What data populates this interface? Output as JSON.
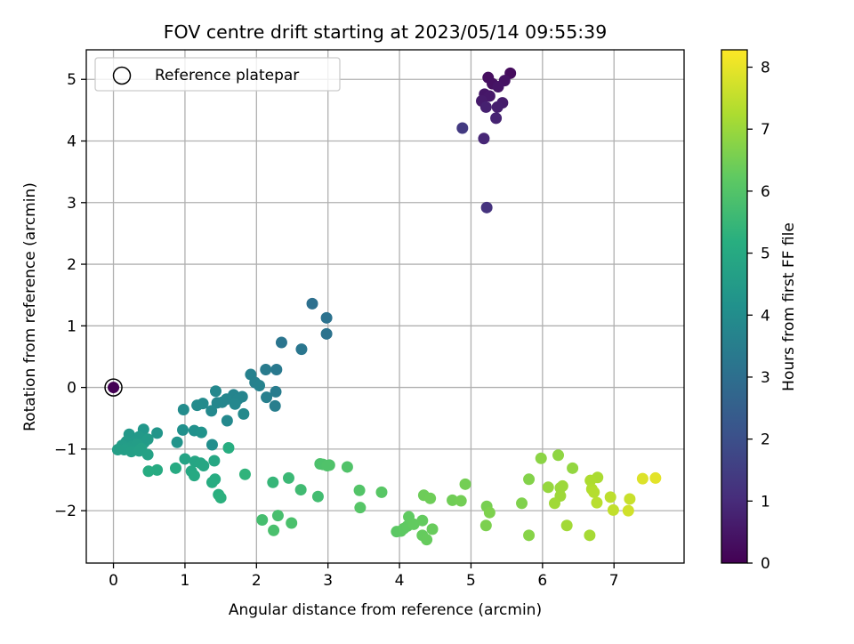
{
  "chart_data": {
    "type": "scatter",
    "title": "FOV centre drift starting at 2023/05/14 09:55:39",
    "xlabel": "Angular distance from reference (arcmin)",
    "ylabel": "Rotation from reference (arcmin)",
    "xlim": [
      -0.38,
      7.98
    ],
    "ylim": [
      -2.85,
      5.48
    ],
    "xticks": [
      0,
      1,
      2,
      3,
      4,
      5,
      6,
      7
    ],
    "yticks": [
      -2,
      -1,
      0,
      1,
      2,
      3,
      4,
      5
    ],
    "grid": true,
    "legend": {
      "placement": "upper-left",
      "entries": [
        "Reference platepar"
      ]
    },
    "reference_point": {
      "x": 0,
      "y": 0,
      "label": "Reference platepar"
    },
    "colorbar": {
      "label": "Hours from first FF file",
      "colormap": "viridis",
      "range": [
        0,
        8.28
      ],
      "ticks": [
        0,
        1,
        2,
        3,
        4,
        5,
        6,
        7,
        8
      ]
    },
    "points": [
      [
        0.0,
        0.0,
        0.0
      ],
      [
        5.55,
        5.1,
        0.25
      ],
      [
        5.24,
        5.03,
        0.3
      ],
      [
        5.3,
        4.93,
        0.35
      ],
      [
        5.47,
        4.98,
        0.4
      ],
      [
        5.38,
        4.88,
        0.45
      ],
      [
        5.19,
        4.76,
        0.5
      ],
      [
        5.26,
        4.73,
        0.55
      ],
      [
        5.15,
        4.65,
        0.6
      ],
      [
        5.44,
        4.62,
        0.65
      ],
      [
        5.37,
        4.55,
        0.7
      ],
      [
        5.21,
        4.55,
        0.75
      ],
      [
        5.35,
        4.37,
        0.8
      ],
      [
        5.18,
        4.04,
        0.9
      ],
      [
        5.22,
        2.92,
        1.2
      ],
      [
        4.88,
        4.21,
        1.4
      ],
      [
        2.78,
        1.36,
        3.05
      ],
      [
        2.98,
        1.13,
        3.1
      ],
      [
        2.98,
        0.87,
        3.15
      ],
      [
        2.35,
        0.73,
        3.2
      ],
      [
        2.63,
        0.62,
        3.25
      ],
      [
        2.28,
        0.29,
        3.35
      ],
      [
        2.13,
        0.29,
        3.4
      ],
      [
        2.27,
        -0.07,
        3.45
      ],
      [
        2.26,
        -0.3,
        3.5
      ],
      [
        2.14,
        -0.16,
        3.55
      ],
      [
        1.92,
        0.21,
        3.6
      ],
      [
        1.98,
        0.08,
        3.62
      ],
      [
        2.04,
        0.03,
        3.64
      ],
      [
        1.8,
        -0.15,
        3.7
      ],
      [
        1.68,
        -0.12,
        3.72
      ],
      [
        1.74,
        -0.19,
        3.74
      ],
      [
        1.58,
        -0.19,
        3.76
      ],
      [
        1.52,
        -0.24,
        3.78
      ],
      [
        1.7,
        -0.27,
        3.8
      ],
      [
        1.45,
        -0.25,
        3.82
      ],
      [
        1.43,
        -0.06,
        3.84
      ],
      [
        1.37,
        -0.38,
        3.86
      ],
      [
        1.59,
        -0.54,
        3.88
      ],
      [
        1.82,
        -0.43,
        3.9
      ],
      [
        1.25,
        -0.26,
        3.92
      ],
      [
        1.17,
        -0.29,
        3.94
      ],
      [
        0.98,
        -0.36,
        3.96
      ],
      [
        1.38,
        -0.93,
        4.05
      ],
      [
        0.97,
        -0.69,
        4.1
      ],
      [
        1.13,
        -0.7,
        4.15
      ],
      [
        1.23,
        -0.73,
        4.2
      ],
      [
        0.89,
        -0.89,
        4.25
      ],
      [
        0.61,
        -0.74,
        4.3
      ],
      [
        0.42,
        -0.68,
        4.35
      ],
      [
        0.22,
        -0.76,
        4.4
      ],
      [
        0.36,
        -0.8,
        4.42
      ],
      [
        0.3,
        -0.87,
        4.44
      ],
      [
        0.18,
        -0.88,
        4.46
      ],
      [
        0.43,
        -0.89,
        4.48
      ],
      [
        0.48,
        -0.84,
        4.5
      ],
      [
        0.12,
        -0.94,
        4.52
      ],
      [
        0.26,
        -0.95,
        4.54
      ],
      [
        0.33,
        -0.92,
        4.56
      ],
      [
        0.2,
        -0.99,
        4.58
      ],
      [
        0.15,
        -1.01,
        4.6
      ],
      [
        0.06,
        -1.01,
        4.62
      ],
      [
        0.25,
        -1.04,
        4.64
      ],
      [
        0.39,
        -0.99,
        4.66
      ],
      [
        0.36,
        -1.03,
        4.68
      ],
      [
        0.48,
        -1.09,
        4.72
      ],
      [
        1.0,
        -1.16,
        4.8
      ],
      [
        1.14,
        -1.2,
        4.85
      ],
      [
        1.22,
        -1.23,
        4.88
      ],
      [
        1.26,
        -1.27,
        4.9
      ],
      [
        1.41,
        -1.19,
        4.92
      ],
      [
        1.09,
        -1.36,
        4.95
      ],
      [
        1.13,
        -1.43,
        5.0
      ],
      [
        0.87,
        -1.31,
        5.02
      ],
      [
        0.61,
        -1.34,
        5.05
      ],
      [
        0.49,
        -1.36,
        5.07
      ],
      [
        1.42,
        -1.49,
        5.1
      ],
      [
        1.38,
        -1.54,
        5.12
      ],
      [
        1.61,
        -0.98,
        5.15
      ],
      [
        1.47,
        -1.74,
        5.2
      ],
      [
        1.5,
        -1.79,
        5.25
      ],
      [
        1.84,
        -1.41,
        5.35
      ],
      [
        2.23,
        -1.54,
        5.45
      ],
      [
        2.45,
        -1.47,
        5.55
      ],
      [
        2.62,
        -1.66,
        5.65
      ],
      [
        2.86,
        -1.77,
        5.7
      ],
      [
        2.08,
        -2.15,
        5.75
      ],
      [
        2.3,
        -2.08,
        5.8
      ],
      [
        2.24,
        -2.32,
        5.82
      ],
      [
        2.49,
        -2.2,
        5.85
      ],
      [
        2.89,
        -1.24,
        5.88
      ],
      [
        2.93,
        -1.25,
        5.9
      ],
      [
        3.02,
        -1.26,
        5.92
      ],
      [
        2.99,
        -1.27,
        5.94
      ],
      [
        3.27,
        -1.29,
        5.96
      ],
      [
        3.44,
        -1.67,
        6.0
      ],
      [
        3.45,
        -1.95,
        6.05
      ],
      [
        3.75,
        -1.7,
        6.1
      ],
      [
        3.96,
        -2.34,
        6.15
      ],
      [
        4.02,
        -2.33,
        6.18
      ],
      [
        4.06,
        -2.29,
        6.2
      ],
      [
        4.11,
        -2.25,
        6.22
      ],
      [
        4.13,
        -2.1,
        6.24
      ],
      [
        4.2,
        -2.22,
        6.26
      ],
      [
        4.32,
        -2.16,
        6.28
      ],
      [
        4.32,
        -2.4,
        6.3
      ],
      [
        4.38,
        -2.47,
        6.32
      ],
      [
        4.46,
        -2.3,
        6.34
      ],
      [
        4.34,
        -1.75,
        6.4
      ],
      [
        4.43,
        -1.8,
        6.42
      ],
      [
        4.74,
        -1.83,
        6.45
      ],
      [
        4.86,
        -1.84,
        6.48
      ],
      [
        4.92,
        -1.57,
        6.5
      ],
      [
        5.22,
        -1.93,
        6.55
      ],
      [
        5.21,
        -2.24,
        6.6
      ],
      [
        5.26,
        -2.03,
        6.62
      ],
      [
        5.71,
        -1.88,
        6.65
      ],
      [
        5.81,
        -1.49,
        6.7
      ],
      [
        5.81,
        -2.4,
        6.75
      ],
      [
        5.98,
        -1.15,
        6.8
      ],
      [
        6.22,
        -1.1,
        6.85
      ],
      [
        6.42,
        -1.31,
        6.9
      ],
      [
        6.08,
        -1.62,
        6.95
      ],
      [
        6.25,
        -1.63,
        7.0
      ],
      [
        6.28,
        -1.6,
        7.02
      ],
      [
        6.25,
        -1.76,
        7.05
      ],
      [
        6.17,
        -1.88,
        7.08
      ],
      [
        6.34,
        -2.24,
        7.1
      ],
      [
        6.66,
        -2.4,
        7.15
      ],
      [
        6.77,
        -1.46,
        7.2
      ],
      [
        6.67,
        -1.51,
        7.25
      ],
      [
        6.69,
        -1.65,
        7.3
      ],
      [
        6.72,
        -1.7,
        7.35
      ],
      [
        6.76,
        -1.87,
        7.4
      ],
      [
        6.95,
        -1.78,
        7.45
      ],
      [
        6.99,
        -1.99,
        7.5
      ],
      [
        7.22,
        -1.81,
        7.6
      ],
      [
        7.2,
        -2.0,
        7.7
      ],
      [
        7.4,
        -1.48,
        7.85
      ],
      [
        7.58,
        -1.47,
        7.95
      ]
    ]
  }
}
